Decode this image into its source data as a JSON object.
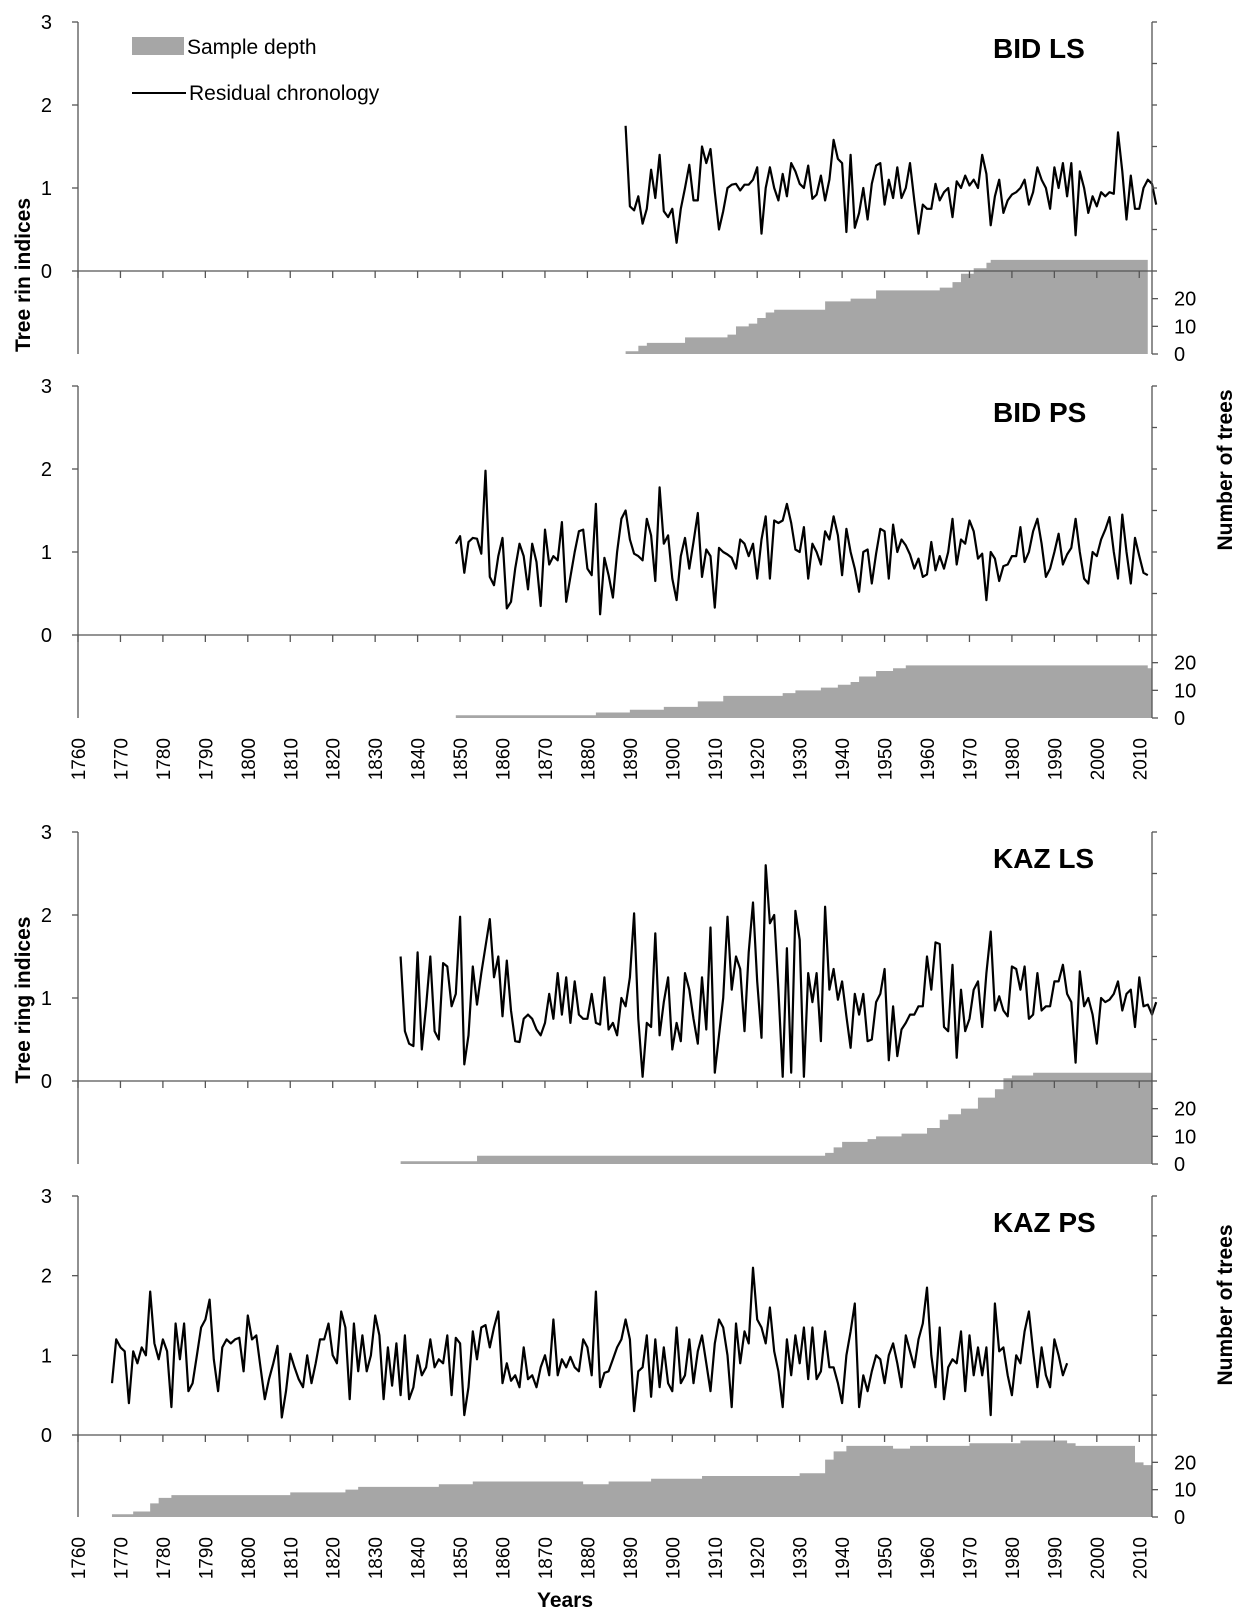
{
  "colors": {
    "depth_fill": "#a6a6a6",
    "line": "#000000",
    "axis": "#555555"
  },
  "legend": {
    "placement": "top-left",
    "items": [
      {
        "label": "Sample depth",
        "kind": "area",
        "color": "#a6a6a6"
      },
      {
        "label": "Residual chronology",
        "kind": "line",
        "color": "#000000"
      }
    ]
  },
  "labels": {
    "ylabel_upper": "Tree rin indices",
    "ylabel_lower": "Tree ring indices",
    "y2label_upper": "Number of trees",
    "y2label_lower": "Number of trees",
    "xlabel": "Years"
  },
  "chart_data": [
    {
      "type": "line",
      "title": "BID LS",
      "xlim": [
        1760,
        2013
      ],
      "ylim": [
        0,
        3
      ],
      "yticks": [
        0,
        1,
        2,
        3
      ],
      "series": [
        {
          "name": "Residual chronology",
          "x_start": 1889,
          "values": [
            1.75,
            0.78,
            0.73,
            0.9,
            0.57,
            0.75,
            1.22,
            0.88,
            1.4,
            0.72,
            0.65,
            0.75,
            0.34,
            0.75,
            1.0,
            1.28,
            0.85,
            0.85,
            1.5,
            1.3,
            1.47,
            0.95,
            0.5,
            0.72,
            1.0,
            1.04,
            1.05,
            0.97,
            1.04,
            1.04,
            1.1,
            1.25,
            0.45,
            1.0,
            1.25,
            1.0,
            0.85,
            1.17,
            0.9,
            1.3,
            1.2,
            1.05,
            1.0,
            1.27,
            0.87,
            0.92,
            1.15,
            0.85,
            1.1,
            1.58,
            1.35,
            1.3,
            0.47,
            1.4,
            0.52,
            0.7,
            1.0,
            0.62,
            1.05,
            1.27,
            1.3,
            0.8,
            1.1,
            0.88,
            1.25,
            0.88,
            1.0,
            1.3,
            0.85,
            0.45,
            0.8,
            0.75,
            0.75,
            1.05,
            0.85,
            0.95,
            1.0,
            0.65,
            1.08,
            1.0,
            1.15,
            1.03,
            1.1,
            1.0,
            1.4,
            1.17,
            0.55,
            0.9,
            1.1,
            0.7,
            0.85,
            0.92,
            0.95,
            1.0,
            1.1,
            0.8,
            0.95,
            1.25,
            1.1,
            1.0,
            0.75,
            1.25,
            1.0,
            1.3,
            0.9,
            1.3,
            0.43,
            1.2,
            1.0,
            0.7,
            0.9,
            0.78,
            0.95,
            0.9,
            0.95,
            0.93,
            1.67,
            1.2,
            0.62,
            1.15,
            0.75,
            0.75,
            1.0,
            1.1,
            1.05,
            0.8
          ]
        }
      ],
      "depth": {
        "name": "Sample depth",
        "ylim": [
          0,
          30
        ],
        "yticks": [
          0,
          10,
          20
        ],
        "steps": [
          [
            1889,
            1
          ],
          [
            1892,
            3
          ],
          [
            1894,
            4
          ],
          [
            1903,
            6
          ],
          [
            1913,
            7
          ],
          [
            1915,
            10
          ],
          [
            1918,
            11
          ],
          [
            1920,
            13
          ],
          [
            1922,
            15
          ],
          [
            1924,
            16
          ],
          [
            1936,
            19
          ],
          [
            1942,
            20
          ],
          [
            1948,
            23
          ],
          [
            1963,
            24
          ],
          [
            1966,
            26
          ],
          [
            1968,
            29
          ],
          [
            1971,
            31
          ],
          [
            1974,
            33
          ],
          [
            1975,
            34
          ]
        ],
        "end": 2012
      }
    },
    {
      "type": "line",
      "title": "BID PS",
      "xlim": [
        1760,
        2013
      ],
      "ylim": [
        0,
        3
      ],
      "yticks": [
        0,
        1,
        2,
        3
      ],
      "series": [
        {
          "name": "Residual chronology",
          "x_start": 1849,
          "values": [
            1.1,
            1.19,
            0.75,
            1.12,
            1.17,
            1.16,
            0.98,
            1.98,
            0.7,
            0.6,
            0.95,
            1.17,
            0.32,
            0.4,
            0.8,
            1.1,
            0.95,
            0.55,
            1.1,
            0.88,
            0.35,
            1.27,
            0.85,
            0.95,
            0.9,
            1.36,
            0.4,
            0.7,
            1.0,
            1.25,
            1.27,
            0.8,
            0.72,
            1.58,
            0.25,
            0.93,
            0.72,
            0.45,
            1.0,
            1.4,
            1.5,
            1.15,
            0.98,
            0.95,
            0.9,
            1.4,
            1.2,
            0.65,
            1.78,
            1.1,
            1.2,
            0.68,
            0.42,
            0.95,
            1.17,
            0.8,
            1.12,
            1.47,
            0.7,
            1.03,
            0.95,
            0.33,
            1.05,
            1.0,
            0.97,
            0.93,
            0.8,
            1.15,
            1.1,
            0.95,
            1.1,
            0.68,
            1.15,
            1.43,
            0.68,
            1.38,
            1.35,
            1.38,
            1.58,
            1.35,
            1.03,
            1.0,
            1.3,
            0.68,
            1.1,
            1.0,
            0.85,
            1.25,
            1.15,
            1.43,
            1.2,
            0.72,
            1.28,
            1.0,
            0.8,
            0.52,
            1.0,
            1.03,
            0.62,
            0.98,
            1.28,
            1.25,
            0.68,
            1.33,
            1.0,
            1.15,
            1.08,
            0.97,
            0.8,
            0.92,
            0.7,
            0.73,
            1.12,
            0.78,
            0.95,
            0.8,
            1.0,
            1.4,
            0.85,
            1.15,
            1.1,
            1.38,
            1.25,
            0.92,
            0.98,
            0.42,
            1.0,
            0.92,
            0.65,
            0.83,
            0.85,
            0.95,
            0.95,
            1.3,
            0.88,
            1.0,
            1.25,
            1.4,
            1.1,
            0.7,
            0.8,
            1.0,
            1.22,
            0.85,
            0.97,
            1.05,
            1.4,
            1.0,
            0.68,
            0.62,
            1.0,
            0.95,
            1.15,
            1.27,
            1.42,
            1.0,
            0.68,
            1.45,
            1.0,
            0.62,
            1.17,
            0.95,
            0.75,
            0.72
          ]
        }
      ],
      "depth": {
        "name": "Sample depth",
        "ylim": [
          0,
          30
        ],
        "yticks": [
          0,
          10,
          20
        ],
        "steps": [
          [
            1849,
            1
          ],
          [
            1882,
            2
          ],
          [
            1890,
            3
          ],
          [
            1898,
            4
          ],
          [
            1906,
            6
          ],
          [
            1912,
            8
          ],
          [
            1926,
            9
          ],
          [
            1929,
            10
          ],
          [
            1935,
            11
          ],
          [
            1939,
            12
          ],
          [
            1942,
            13
          ],
          [
            1944,
            15
          ],
          [
            1948,
            17
          ],
          [
            1952,
            18
          ],
          [
            1955,
            19
          ],
          [
            2012,
            18
          ]
        ],
        "end": 2013
      }
    },
    {
      "type": "line",
      "title": "KAZ LS",
      "xlim": [
        1760,
        2013
      ],
      "ylim": [
        0,
        3
      ],
      "yticks": [
        0,
        1,
        2,
        3
      ],
      "series": [
        {
          "name": "Residual chronology",
          "x_start": 1836,
          "values": [
            1.5,
            0.6,
            0.45,
            0.42,
            1.55,
            0.38,
            0.9,
            1.5,
            0.6,
            0.5,
            1.42,
            1.38,
            0.9,
            1.05,
            1.98,
            0.2,
            0.55,
            1.38,
            0.92,
            1.3,
            1.62,
            1.95,
            1.25,
            1.5,
            0.78,
            1.45,
            0.85,
            0.48,
            0.47,
            0.75,
            0.8,
            0.75,
            0.62,
            0.55,
            0.7,
            1.05,
            0.75,
            1.3,
            0.8,
            1.25,
            0.7,
            1.2,
            0.8,
            0.75,
            0.75,
            1.05,
            0.7,
            0.68,
            1.25,
            0.62,
            0.7,
            0.55,
            1.0,
            0.9,
            1.25,
            2.02,
            0.75,
            0.05,
            0.7,
            0.65,
            1.78,
            0.55,
            0.95,
            1.25,
            0.38,
            0.7,
            0.48,
            1.3,
            1.1,
            0.75,
            0.45,
            1.25,
            0.62,
            1.85,
            0.1,
            0.55,
            1.0,
            1.98,
            1.1,
            1.5,
            1.35,
            0.6,
            1.55,
            2.15,
            1.2,
            0.52,
            2.6,
            1.9,
            2.0,
            1.1,
            0.05,
            1.6,
            0.1,
            2.05,
            1.7,
            0.05,
            1.3,
            0.95,
            1.3,
            0.48,
            2.1,
            1.1,
            1.35,
            0.98,
            1.2,
            0.78,
            0.4,
            1.05,
            0.8,
            1.05,
            0.48,
            0.5,
            0.95,
            1.05,
            1.35,
            0.25,
            0.9,
            0.3,
            0.62,
            0.7,
            0.8,
            0.8,
            0.9,
            0.9,
            1.5,
            1.1,
            1.67,
            1.65,
            0.65,
            0.6,
            1.4,
            0.28,
            1.1,
            0.6,
            0.75,
            1.1,
            1.2,
            0.65,
            1.3,
            1.8,
            0.85,
            1.02,
            0.85,
            0.78,
            1.38,
            1.35,
            1.1,
            1.38,
            0.75,
            0.8,
            1.3,
            0.85,
            0.9,
            0.9,
            1.2,
            1.2,
            1.4,
            1.05,
            0.95,
            0.22,
            1.32,
            0.9,
            1.0,
            0.8,
            0.45,
            1.0,
            0.95,
            0.98,
            1.05,
            1.2,
            0.85,
            1.05,
            1.1,
            0.65,
            1.25,
            0.9,
            0.92,
            0.8,
            0.95
          ]
        }
      ],
      "depth": {
        "name": "Sample depth",
        "ylim": [
          0,
          30
        ],
        "yticks": [
          0,
          10,
          20
        ],
        "steps": [
          [
            1836,
            1
          ],
          [
            1854,
            3
          ],
          [
            1936,
            4
          ],
          [
            1938,
            6
          ],
          [
            1940,
            8
          ],
          [
            1946,
            9
          ],
          [
            1948,
            10
          ],
          [
            1954,
            11
          ],
          [
            1960,
            13
          ],
          [
            1963,
            16
          ],
          [
            1965,
            18
          ],
          [
            1968,
            20
          ],
          [
            1972,
            24
          ],
          [
            1976,
            27
          ],
          [
            1978,
            31
          ],
          [
            1980,
            32
          ],
          [
            1985,
            33
          ]
        ],
        "end": 2013
      }
    },
    {
      "type": "line",
      "title": "KAZ PS",
      "xlim": [
        1760,
        2013
      ],
      "ylim": [
        0,
        3
      ],
      "yticks": [
        0,
        1,
        2,
        3
      ],
      "series": [
        {
          "name": "Residual chronology",
          "x_start": 1768,
          "values": [
            0.65,
            1.2,
            1.1,
            1.05,
            0.4,
            1.05,
            0.9,
            1.1,
            1.0,
            1.8,
            1.15,
            0.95,
            1.2,
            1.05,
            0.35,
            1.4,
            0.95,
            1.4,
            0.55,
            0.65,
            1.0,
            1.35,
            1.45,
            1.7,
            0.95,
            0.55,
            1.1,
            1.2,
            1.15,
            1.2,
            1.22,
            0.8,
            1.5,
            1.2,
            1.25,
            0.85,
            0.45,
            0.7,
            0.9,
            1.12,
            0.22,
            0.55,
            1.02,
            0.85,
            0.7,
            0.6,
            1.0,
            0.65,
            0.9,
            1.2,
            1.2,
            1.4,
            1.0,
            0.9,
            1.55,
            1.35,
            0.45,
            1.4,
            0.8,
            1.25,
            0.8,
            1.0,
            1.5,
            1.25,
            0.45,
            1.1,
            0.62,
            1.15,
            0.5,
            1.25,
            0.45,
            0.6,
            1.0,
            0.75,
            0.85,
            1.2,
            0.85,
            0.95,
            0.9,
            1.25,
            0.5,
            1.22,
            1.15,
            0.25,
            0.6,
            1.3,
            0.95,
            1.35,
            1.38,
            1.1,
            1.35,
            1.55,
            0.65,
            0.9,
            0.68,
            0.75,
            0.6,
            1.1,
            0.7,
            0.75,
            0.6,
            0.85,
            1.0,
            0.75,
            1.45,
            0.75,
            0.95,
            0.85,
            0.98,
            0.85,
            0.8,
            1.2,
            1.1,
            0.75,
            1.8,
            0.6,
            0.78,
            0.8,
            0.95,
            1.1,
            1.2,
            1.45,
            1.2,
            0.3,
            0.8,
            0.85,
            1.25,
            0.48,
            1.2,
            0.6,
            1.1,
            0.65,
            0.55,
            1.35,
            0.65,
            0.75,
            1.2,
            0.65,
            1.05,
            1.25,
            0.9,
            0.55,
            1.15,
            1.45,
            1.35,
            1.0,
            0.35,
            1.4,
            0.9,
            1.3,
            1.15,
            2.1,
            1.45,
            1.35,
            1.15,
            1.6,
            1.05,
            0.8,
            0.35,
            1.2,
            0.75,
            1.25,
            0.9,
            1.35,
            0.7,
            1.35,
            0.7,
            0.8,
            1.3,
            0.85,
            0.85,
            0.65,
            0.4,
            1.0,
            1.3,
            1.65,
            0.35,
            0.75,
            0.55,
            0.8,
            1.0,
            0.95,
            0.65,
            1.0,
            1.15,
            0.9,
            0.6,
            1.25,
            1.05,
            0.85,
            1.2,
            1.4,
            1.85,
            1.0,
            0.6,
            1.35,
            0.45,
            0.85,
            0.95,
            0.9,
            1.3,
            0.55,
            1.25,
            0.75,
            1.1,
            0.75,
            1.1,
            0.25,
            1.65,
            1.05,
            1.1,
            0.75,
            0.5,
            1.0,
            0.9,
            1.3,
            1.55,
            1.05,
            0.6,
            1.1,
            0.75,
            0.6,
            1.2,
            1.0,
            0.75,
            0.9
          ]
        }
      ],
      "depth": {
        "name": "Sample depth",
        "ylim": [
          0,
          30
        ],
        "yticks": [
          0,
          10,
          20
        ],
        "steps": [
          [
            1768,
            1
          ],
          [
            1773,
            2
          ],
          [
            1777,
            5
          ],
          [
            1779,
            7
          ],
          [
            1782,
            8
          ],
          [
            1790,
            8
          ],
          [
            1810,
            9
          ],
          [
            1823,
            10
          ],
          [
            1826,
            11
          ],
          [
            1845,
            12
          ],
          [
            1853,
            13
          ],
          [
            1879,
            12
          ],
          [
            1885,
            13
          ],
          [
            1895,
            14
          ],
          [
            1907,
            15
          ],
          [
            1930,
            16
          ],
          [
            1936,
            21
          ],
          [
            1938,
            24
          ],
          [
            1941,
            26
          ],
          [
            1952,
            25
          ],
          [
            1956,
            26
          ],
          [
            1970,
            27
          ],
          [
            1982,
            28
          ],
          [
            1993,
            27
          ],
          [
            1995,
            26
          ],
          [
            2009,
            20
          ],
          [
            2011,
            19
          ]
        ],
        "end": 2013
      }
    }
  ]
}
